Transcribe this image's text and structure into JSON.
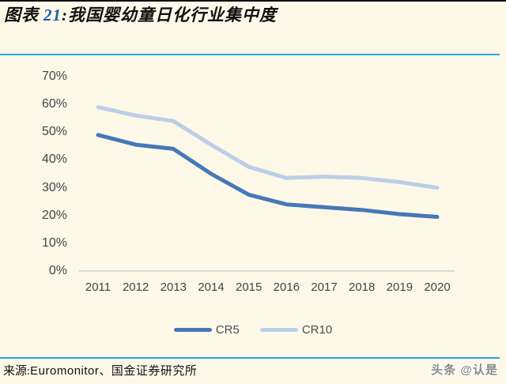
{
  "header": {
    "prefix": "图表",
    "figure_number": "21",
    "colon": ":",
    "title": "我国婴幼童日化行业集中度"
  },
  "chart_data": {
    "type": "line",
    "title": "我国婴幼童日化行业集中度",
    "categories": [
      "2011",
      "2012",
      "2013",
      "2014",
      "2015",
      "2016",
      "2017",
      "2018",
      "2019",
      "2020"
    ],
    "series": [
      {
        "name": "CR5",
        "color": "#4677B8",
        "values": [
          49,
          45.5,
          44,
          35,
          27.5,
          24,
          23,
          22,
          20.5,
          19.5
        ]
      },
      {
        "name": "CR10",
        "color": "#BCCFE8",
        "values": [
          59,
          56,
          54,
          45.5,
          37.5,
          33.5,
          34,
          33.5,
          32,
          30
        ]
      }
    ],
    "unit": "%",
    "y_ticks": [
      "70%",
      "60%",
      "50%",
      "40%",
      "30%",
      "20%",
      "10%",
      "0%"
    ],
    "y_tick_values": [
      70,
      60,
      50,
      40,
      30,
      20,
      10,
      0
    ],
    "ylim": [
      0,
      70
    ],
    "grid": false,
    "legend_position": "bottom"
  },
  "footer": {
    "source_label": "来源:",
    "source_text": "Euromonitor、国金证券研究所",
    "watermark": "头条 @认是"
  },
  "colors": {
    "background": "#FDF8E8",
    "accent_rule": "#29A2DF",
    "cr5": "#4677B8",
    "cr10": "#BCCFE8",
    "figure_number": "#1E5FA8",
    "axis_text": "#454545",
    "baseline": "#D9D9D9"
  }
}
